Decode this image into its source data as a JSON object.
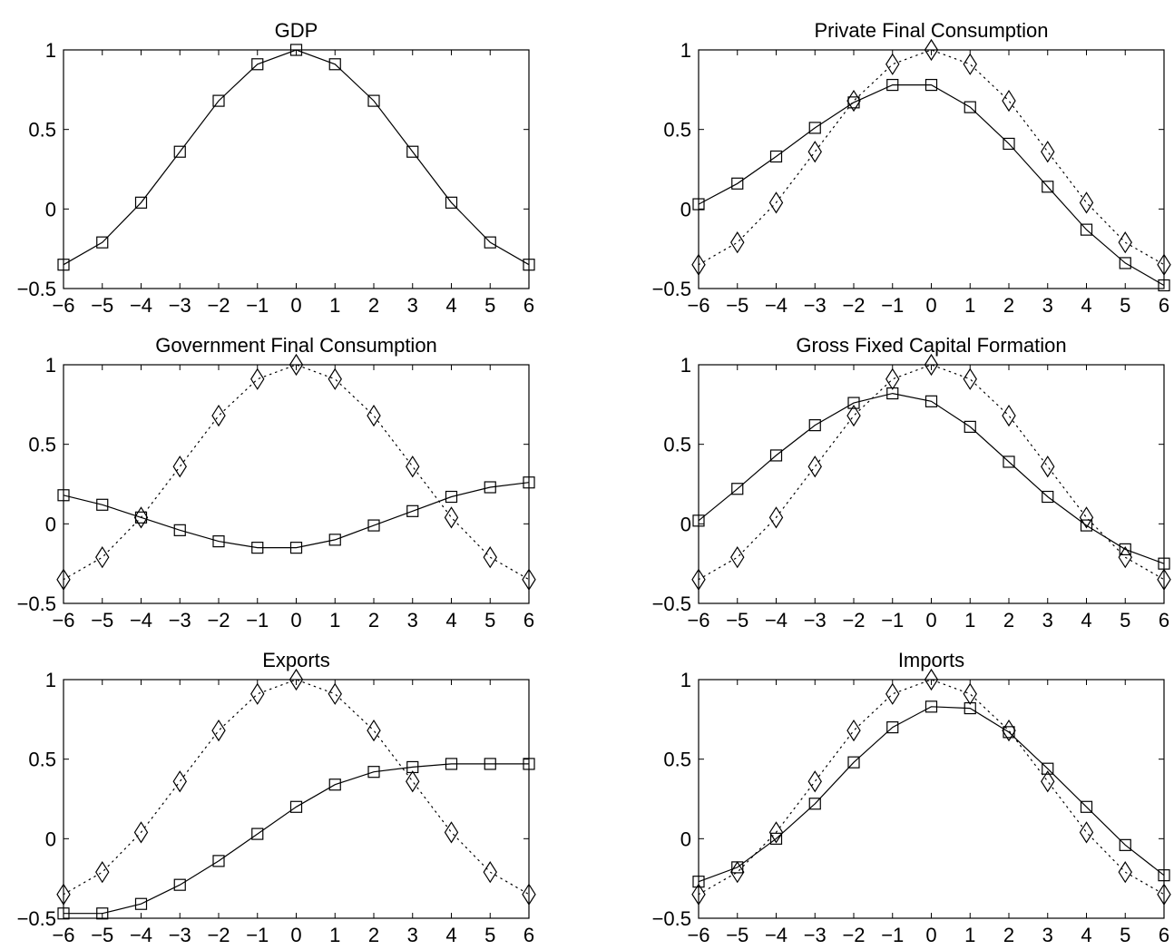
{
  "chart_data": [
    {
      "type": "line",
      "title": "GDP",
      "x": [
        -6,
        -5,
        -4,
        -3,
        -2,
        -1,
        0,
        1,
        2,
        3,
        4,
        5,
        6
      ],
      "xlim": [
        -6,
        6
      ],
      "ylim": [
        -0.5,
        1
      ],
      "xticks": [
        "−6",
        "−5",
        "−4",
        "−3",
        "−2",
        "−1",
        "0",
        "1",
        "2",
        "3",
        "4",
        "5",
        "6"
      ],
      "yticks": [
        "−0.5",
        "0",
        "0.5",
        "1"
      ],
      "series": [
        {
          "marker": "square",
          "style": "solid",
          "values": [
            -0.35,
            -0.21,
            0.04,
            0.36,
            0.68,
            0.91,
            1.0,
            0.91,
            0.68,
            0.36,
            0.04,
            -0.21,
            -0.35
          ]
        }
      ]
    },
    {
      "type": "line",
      "title": "Private Final Consumption",
      "x": [
        -6,
        -5,
        -4,
        -3,
        -2,
        -1,
        0,
        1,
        2,
        3,
        4,
        5,
        6
      ],
      "xlim": [
        -6,
        6
      ],
      "ylim": [
        -0.5,
        1
      ],
      "xticks": [
        "−6",
        "−5",
        "−4",
        "−3",
        "−2",
        "−1",
        "0",
        "1",
        "2",
        "3",
        "4",
        "5",
        "6"
      ],
      "yticks": [
        "−0.5",
        "0",
        "0.5",
        "1"
      ],
      "series": [
        {
          "marker": "square",
          "style": "solid",
          "values": [
            0.03,
            0.16,
            0.33,
            0.51,
            0.67,
            0.78,
            0.78,
            0.64,
            0.41,
            0.14,
            -0.13,
            -0.34,
            -0.48
          ]
        },
        {
          "marker": "diamond",
          "style": "dotted",
          "values": [
            -0.35,
            -0.21,
            0.04,
            0.36,
            0.68,
            0.91,
            1.0,
            0.91,
            0.68,
            0.36,
            0.04,
            -0.21,
            -0.35
          ]
        }
      ]
    },
    {
      "type": "line",
      "title": "Government Final Consumption",
      "x": [
        -6,
        -5,
        -4,
        -3,
        -2,
        -1,
        0,
        1,
        2,
        3,
        4,
        5,
        6
      ],
      "xlim": [
        -6,
        6
      ],
      "ylim": [
        -0.5,
        1
      ],
      "xticks": [
        "−6",
        "−5",
        "−4",
        "−3",
        "−2",
        "−1",
        "0",
        "1",
        "2",
        "3",
        "4",
        "5",
        "6"
      ],
      "yticks": [
        "−0.5",
        "0",
        "0.5",
        "1"
      ],
      "series": [
        {
          "marker": "square",
          "style": "solid",
          "values": [
            0.18,
            0.12,
            0.04,
            -0.04,
            -0.11,
            -0.15,
            -0.15,
            -0.1,
            -0.01,
            0.08,
            0.17,
            0.23,
            0.26
          ]
        },
        {
          "marker": "diamond",
          "style": "dotted",
          "values": [
            -0.35,
            -0.21,
            0.04,
            0.36,
            0.68,
            0.91,
            1.0,
            0.91,
            0.68,
            0.36,
            0.04,
            -0.21,
            -0.35
          ]
        }
      ]
    },
    {
      "type": "line",
      "title": "Gross Fixed Capital Formation",
      "x": [
        -6,
        -5,
        -4,
        -3,
        -2,
        -1,
        0,
        1,
        2,
        3,
        4,
        5,
        6
      ],
      "xlim": [
        -6,
        6
      ],
      "ylim": [
        -0.5,
        1
      ],
      "xticks": [
        "−6",
        "−5",
        "−4",
        "−3",
        "−2",
        "−1",
        "0",
        "1",
        "2",
        "3",
        "4",
        "5",
        "6"
      ],
      "yticks": [
        "−0.5",
        "0",
        "0.5",
        "1"
      ],
      "series": [
        {
          "marker": "square",
          "style": "solid",
          "values": [
            0.02,
            0.22,
            0.43,
            0.62,
            0.76,
            0.82,
            0.77,
            0.61,
            0.39,
            0.17,
            -0.01,
            -0.16,
            -0.25
          ]
        },
        {
          "marker": "diamond",
          "style": "dotted",
          "values": [
            -0.35,
            -0.21,
            0.04,
            0.36,
            0.68,
            0.91,
            1.0,
            0.91,
            0.68,
            0.36,
            0.04,
            -0.21,
            -0.35
          ]
        }
      ]
    },
    {
      "type": "line",
      "title": "Exports",
      "x": [
        -6,
        -5,
        -4,
        -3,
        -2,
        -1,
        0,
        1,
        2,
        3,
        4,
        5,
        6
      ],
      "xlim": [
        -6,
        6
      ],
      "ylim": [
        -0.5,
        1
      ],
      "xticks": [
        "−6",
        "−5",
        "−4",
        "−3",
        "−2",
        "−1",
        "0",
        "1",
        "2",
        "3",
        "4",
        "5",
        "6"
      ],
      "yticks": [
        "−0.5",
        "0",
        "0.5",
        "1"
      ],
      "series": [
        {
          "marker": "square",
          "style": "solid",
          "values": [
            -0.47,
            -0.47,
            -0.41,
            -0.29,
            -0.14,
            0.03,
            0.2,
            0.34,
            0.42,
            0.45,
            0.47,
            0.47,
            0.47
          ]
        },
        {
          "marker": "diamond",
          "style": "dotted",
          "values": [
            -0.35,
            -0.21,
            0.04,
            0.36,
            0.68,
            0.91,
            1.0,
            0.91,
            0.68,
            0.36,
            0.04,
            -0.21,
            -0.35
          ]
        }
      ]
    },
    {
      "type": "line",
      "title": "Imports",
      "x": [
        -6,
        -5,
        -4,
        -3,
        -2,
        -1,
        0,
        1,
        2,
        3,
        4,
        5,
        6
      ],
      "xlim": [
        -6,
        6
      ],
      "ylim": [
        -0.5,
        1
      ],
      "xticks": [
        "−6",
        "−5",
        "−4",
        "−3",
        "−2",
        "−1",
        "0",
        "1",
        "2",
        "3",
        "4",
        "5",
        "6"
      ],
      "yticks": [
        "−0.5",
        "0",
        "0.5",
        "1"
      ],
      "series": [
        {
          "marker": "square",
          "style": "solid",
          "values": [
            -0.27,
            -0.18,
            0.0,
            0.22,
            0.48,
            0.7,
            0.83,
            0.82,
            0.67,
            0.44,
            0.2,
            -0.04,
            -0.23
          ]
        },
        {
          "marker": "diamond",
          "style": "dotted",
          "values": [
            -0.35,
            -0.21,
            0.04,
            0.36,
            0.68,
            0.91,
            1.0,
            0.91,
            0.68,
            0.36,
            0.04,
            -0.21,
            -0.35
          ]
        }
      ]
    }
  ]
}
